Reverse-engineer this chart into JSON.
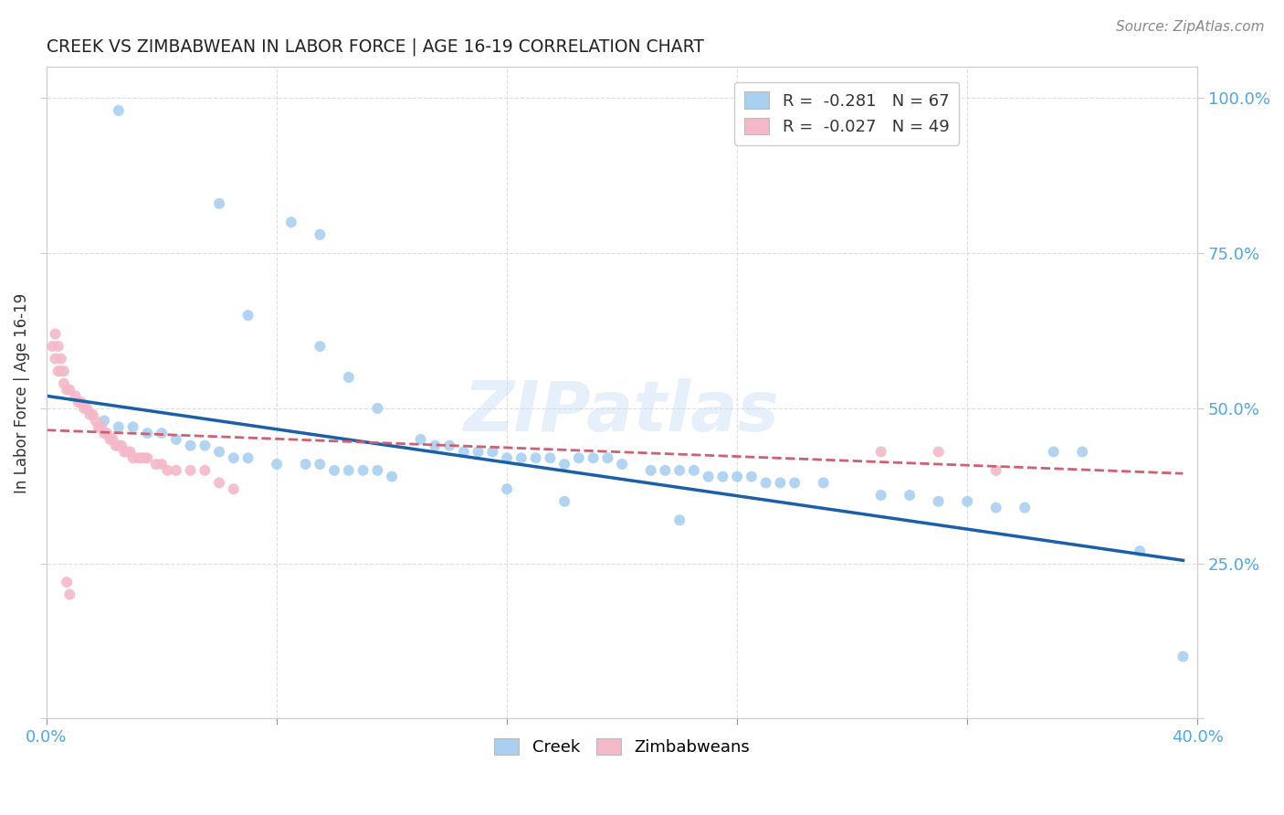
{
  "title": "CREEK VS ZIMBABWEAN IN LABOR FORCE | AGE 16-19 CORRELATION CHART",
  "source": "Source: ZipAtlas.com",
  "ylabel_label": "In Labor Force | Age 16-19",
  "xlim": [
    0.0,
    0.4
  ],
  "ylim": [
    0.0,
    1.05
  ],
  "xticks": [
    0.0,
    0.08,
    0.16,
    0.24,
    0.32,
    0.4
  ],
  "xtick_labels": [
    "0.0%",
    "",
    "",
    "",
    "",
    "40.0%"
  ],
  "yticks": [
    0.0,
    0.25,
    0.5,
    0.75,
    1.0
  ],
  "ytick_labels": [
    "",
    "25.0%",
    "50.0%",
    "75.0%",
    "100.0%"
  ],
  "creek_color": "#a8d0f0",
  "creek_line_color": "#1a5fa8",
  "zimbabwean_color": "#f4b8c8",
  "zimbabwean_line_color": "#d06070",
  "legend_creek_label": "R =  -0.281   N = 67",
  "legend_zimbabwean_label": "R =  -0.027   N = 49",
  "watermark": "ZIPatlas",
  "background_color": "#ffffff",
  "grid_color": "#dddddd",
  "title_color": "#222222",
  "axis_label_color": "#333333",
  "tick_color": "#4da6e8",
  "creek_scatter_x": [
    0.025,
    0.06,
    0.085,
    0.095,
    0.02,
    0.025,
    0.03,
    0.035,
    0.04,
    0.045,
    0.05,
    0.055,
    0.06,
    0.065,
    0.07,
    0.08,
    0.09,
    0.095,
    0.1,
    0.105,
    0.11,
    0.115,
    0.12,
    0.13,
    0.135,
    0.14,
    0.145,
    0.15,
    0.155,
    0.16,
    0.165,
    0.17,
    0.175,
    0.18,
    0.185,
    0.19,
    0.195,
    0.2,
    0.21,
    0.215,
    0.22,
    0.225,
    0.23,
    0.235,
    0.24,
    0.245,
    0.25,
    0.255,
    0.26,
    0.27,
    0.29,
    0.3,
    0.31,
    0.32,
    0.33,
    0.34,
    0.35,
    0.36,
    0.38,
    0.395,
    0.07,
    0.095,
    0.105,
    0.115,
    0.16,
    0.18,
    0.22
  ],
  "creek_scatter_y": [
    0.98,
    0.83,
    0.8,
    0.78,
    0.48,
    0.47,
    0.47,
    0.46,
    0.46,
    0.45,
    0.44,
    0.44,
    0.43,
    0.42,
    0.42,
    0.41,
    0.41,
    0.41,
    0.4,
    0.4,
    0.4,
    0.4,
    0.39,
    0.45,
    0.44,
    0.44,
    0.43,
    0.43,
    0.43,
    0.42,
    0.42,
    0.42,
    0.42,
    0.41,
    0.42,
    0.42,
    0.42,
    0.41,
    0.4,
    0.4,
    0.4,
    0.4,
    0.39,
    0.39,
    0.39,
    0.39,
    0.38,
    0.38,
    0.38,
    0.38,
    0.36,
    0.36,
    0.35,
    0.35,
    0.34,
    0.34,
    0.43,
    0.43,
    0.27,
    0.1,
    0.65,
    0.6,
    0.55,
    0.5,
    0.37,
    0.35,
    0.32
  ],
  "zimbabwean_scatter_x": [
    0.002,
    0.003,
    0.004,
    0.005,
    0.006,
    0.007,
    0.008,
    0.01,
    0.011,
    0.012,
    0.013,
    0.014,
    0.015,
    0.016,
    0.017,
    0.018,
    0.019,
    0.02,
    0.021,
    0.022,
    0.023,
    0.024,
    0.025,
    0.026,
    0.027,
    0.028,
    0.029,
    0.03,
    0.032,
    0.033,
    0.034,
    0.035,
    0.038,
    0.04,
    0.042,
    0.045,
    0.05,
    0.055,
    0.06,
    0.065,
    0.003,
    0.004,
    0.005,
    0.006,
    0.007,
    0.008,
    0.29,
    0.31,
    0.33
  ],
  "zimbabwean_scatter_y": [
    0.6,
    0.58,
    0.56,
    0.56,
    0.54,
    0.53,
    0.53,
    0.52,
    0.51,
    0.51,
    0.5,
    0.5,
    0.49,
    0.49,
    0.48,
    0.47,
    0.47,
    0.46,
    0.46,
    0.45,
    0.45,
    0.44,
    0.44,
    0.44,
    0.43,
    0.43,
    0.43,
    0.42,
    0.42,
    0.42,
    0.42,
    0.42,
    0.41,
    0.41,
    0.4,
    0.4,
    0.4,
    0.4,
    0.38,
    0.37,
    0.62,
    0.6,
    0.58,
    0.56,
    0.22,
    0.2,
    0.43,
    0.43,
    0.4
  ],
  "creek_line_x0": 0.0,
  "creek_line_x1": 0.395,
  "creek_line_y0": 0.52,
  "creek_line_y1": 0.255,
  "zim_line_x0": 0.0,
  "zim_line_x1": 0.395,
  "zim_line_y0": 0.465,
  "zim_line_y1": 0.395
}
